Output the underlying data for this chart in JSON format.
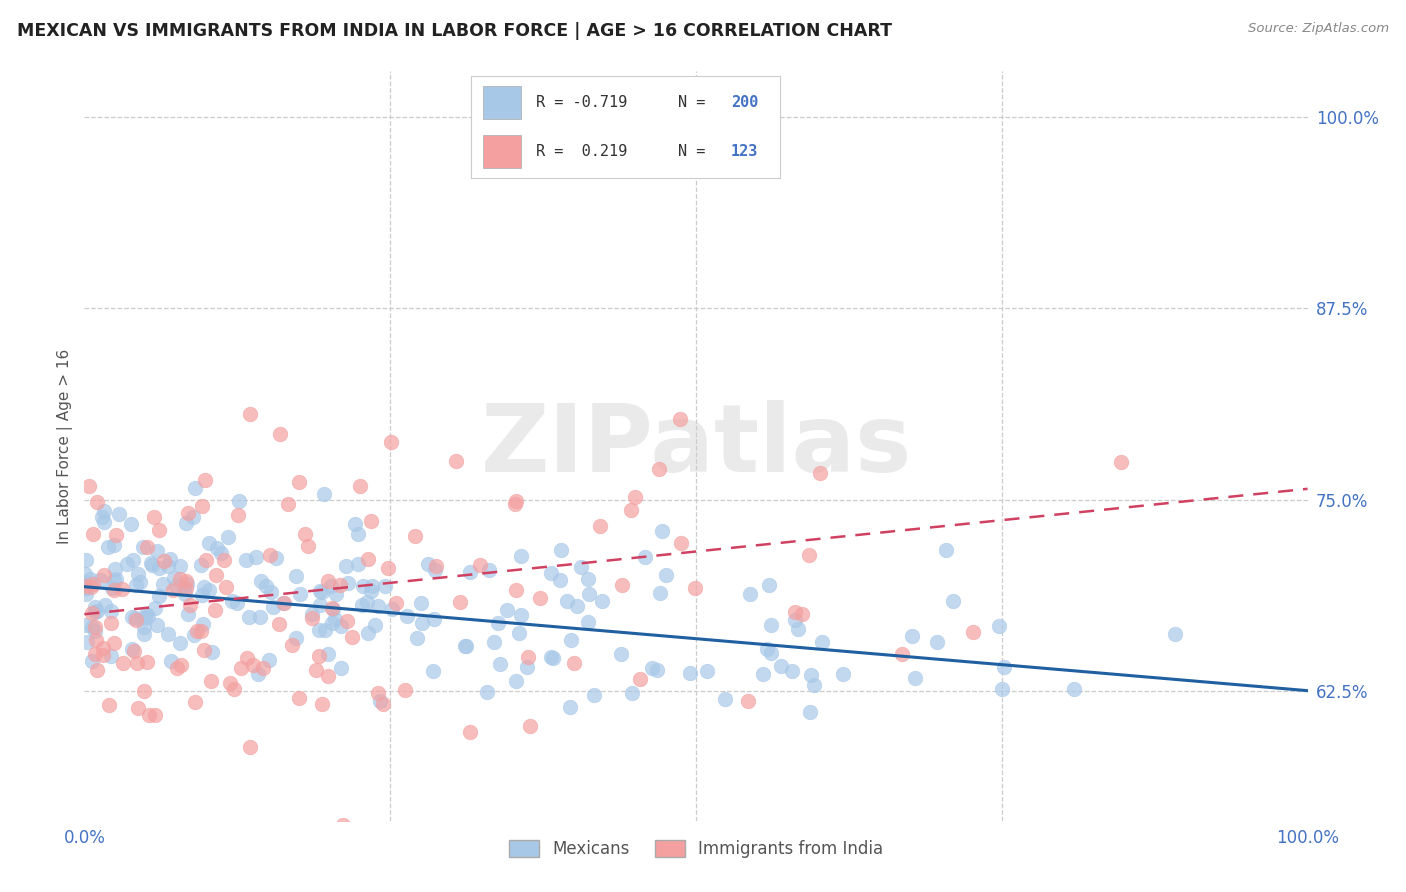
{
  "title": "MEXICAN VS IMMIGRANTS FROM INDIA IN LABOR FORCE | AGE > 16 CORRELATION CHART",
  "source": "Source: ZipAtlas.com",
  "ylabel": "In Labor Force | Age > 16",
  "xlabel": "",
  "xlim": [
    0.0,
    1.0
  ],
  "ylim": [
    0.54,
    1.03
  ],
  "blue_color": "#a8c8e8",
  "pink_color": "#f4a0a0",
  "blue_line_color": "#2060a0",
  "pink_line_color": "#d04060",
  "grid_color": "#cccccc",
  "background_color": "#ffffff",
  "watermark": "ZIPatlas",
  "legend_R_blue": "-0.719",
  "legend_N_blue": "200",
  "legend_R_pink": "0.219",
  "legend_N_pink": "123",
  "blue_intercept": 0.693,
  "blue_slope": -0.068,
  "pink_intercept": 0.675,
  "pink_slope": 0.082,
  "blue_seed": 42,
  "pink_seed": 7,
  "blue_N": 200,
  "pink_N": 123
}
